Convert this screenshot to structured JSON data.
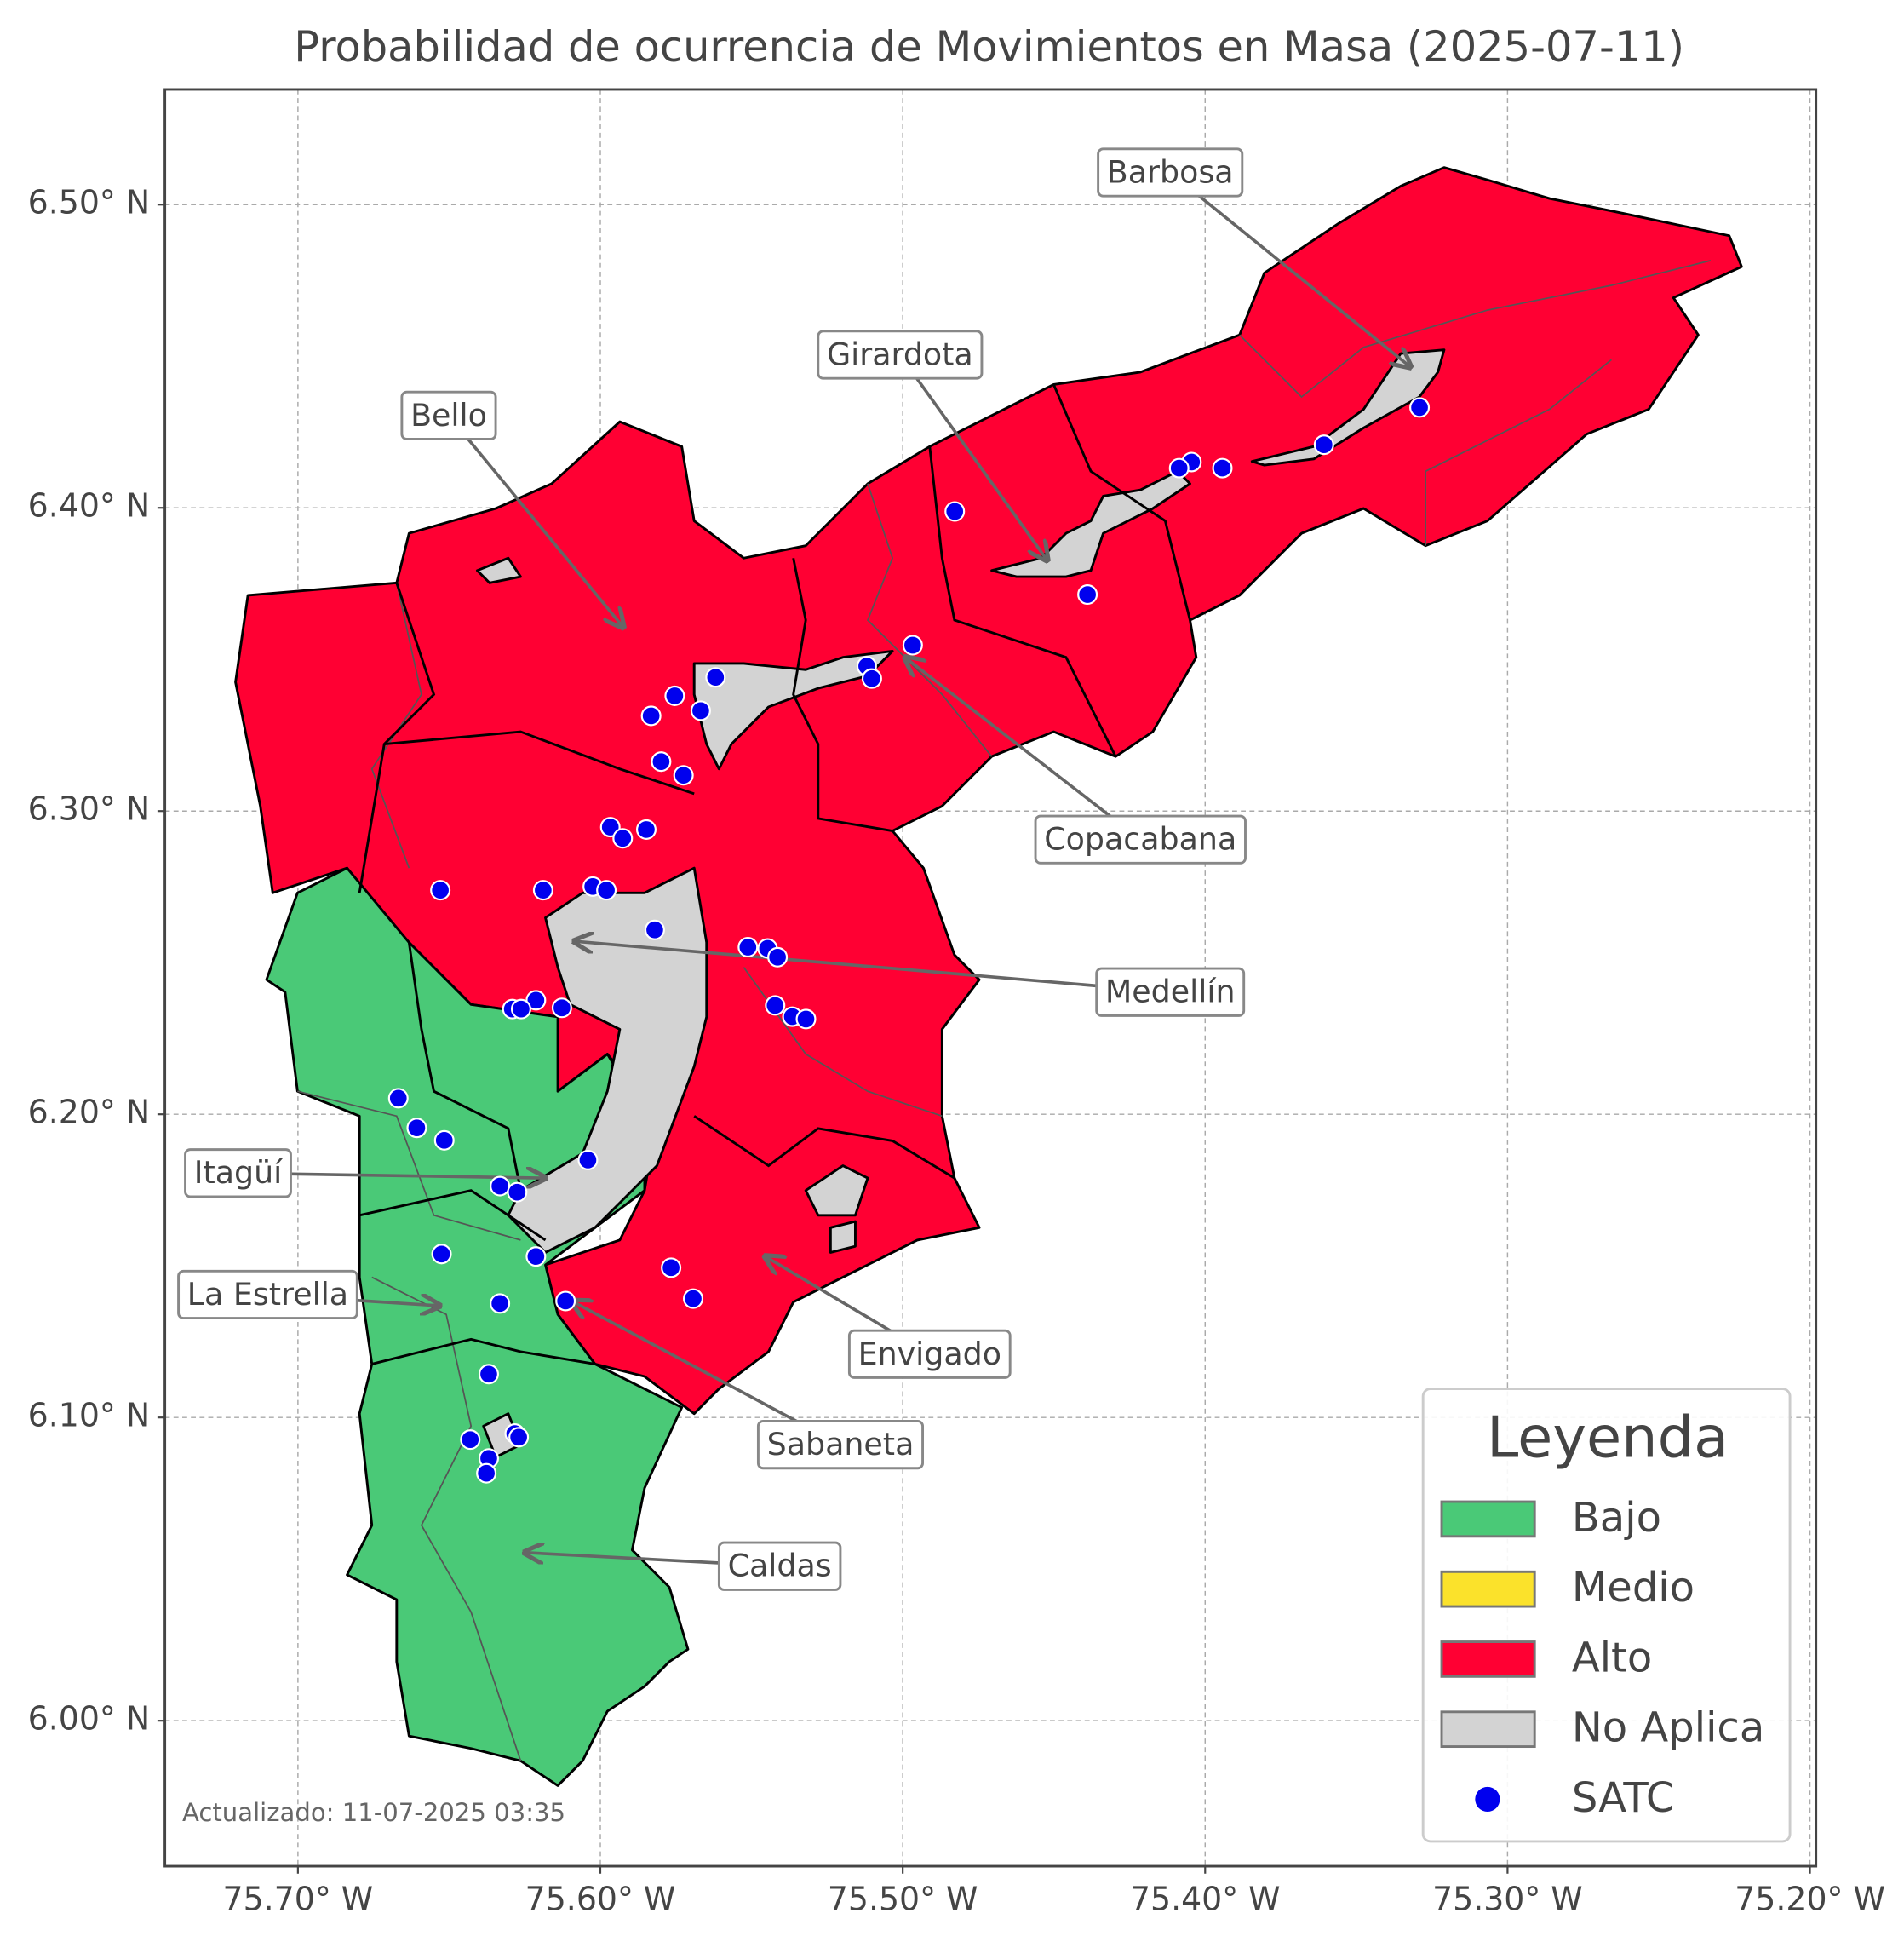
{
  "map": {
    "title": "Probabilidad de ocurrencia de Movimientos en Masa (2025-07-11)",
    "xlim": [
      -75.744,
      -75.198
    ],
    "ylim": [
      5.952,
      6.538
    ],
    "xticks": [
      {
        "value": -75.7,
        "label": "75.70° W"
      },
      {
        "value": -75.6,
        "label": "75.60° W"
      },
      {
        "value": -75.5,
        "label": "75.50° W"
      },
      {
        "value": -75.4,
        "label": "75.40° W"
      },
      {
        "value": -75.3,
        "label": "75.30° W"
      },
      {
        "value": -75.2,
        "label": "75.20° W"
      }
    ],
    "yticks": [
      {
        "value": 6.0,
        "label": "6.00° N"
      },
      {
        "value": 6.1,
        "label": "6.10° N"
      },
      {
        "value": 6.2,
        "label": "6.20° N"
      },
      {
        "value": 6.3,
        "label": "6.30° N"
      },
      {
        "value": 6.4,
        "label": "6.40° N"
      },
      {
        "value": 6.5,
        "label": "6.50° N"
      }
    ],
    "grid": true,
    "annotations": [
      "Barbosa",
      "Girardota",
      "Bello",
      "Copacabana",
      "Medellín",
      "Itagüí",
      "La Estrella",
      "Envigado",
      "Sabaneta",
      "Caldas"
    ],
    "legend": {
      "title": "Leyenda",
      "items": [
        {
          "label": "Bajo",
          "color": "#4ac977"
        },
        {
          "label": "Medio",
          "color": "#fbe22b"
        },
        {
          "label": "Alto",
          "color": "#ff0033"
        },
        {
          "label": "No Aplica",
          "color": "#d3d3d3"
        },
        {
          "label": "SATC",
          "color": "#0000ee",
          "marker": "circle"
        }
      ]
    },
    "satc": {
      "lon": [
        -75.3291,
        -75.3607,
        -75.3943,
        -75.4045,
        -75.4086,
        -75.4828,
        -75.4389,
        -75.4967,
        -75.5119,
        -75.5102,
        -75.5619,
        -75.5754,
        -75.5832,
        -75.5668,
        -75.5799,
        -75.5725,
        -75.5967,
        -75.5926,
        -75.5848,
        -75.6189,
        -75.6529,
        -75.6025,
        -75.598,
        -75.582,
        -75.5512,
        -75.5447,
        -75.5414,
        -75.5422,
        -75.5365,
        -75.532,
        -75.6213,
        -75.6127,
        -75.6291,
        -75.6262,
        -75.6668,
        -75.6607,
        -75.6516,
        -75.6041,
        -75.6332,
        -75.6275,
        -75.6525,
        -75.6213,
        -75.5766,
        -75.5693,
        -75.6332,
        -75.6115,
        -75.6369,
        -75.643,
        -75.6283,
        -75.627,
        -75.6369,
        -75.6377
      ],
      "lat": [
        6.4331,
        6.4208,
        6.4131,
        6.4151,
        6.4131,
        6.3988,
        6.3714,
        6.3547,
        6.3478,
        6.3437,
        6.3441,
        6.338,
        6.3314,
        6.3331,
        6.3163,
        6.3118,
        6.2947,
        6.291,
        6.2939,
        6.2739,
        6.2739,
        6.2751,
        6.2739,
        6.2608,
        6.2551,
        6.2547,
        6.2518,
        6.2359,
        6.2322,
        6.2314,
        6.2376,
        6.2351,
        6.2347,
        6.2347,
        6.2053,
        6.1955,
        6.1914,
        6.1849,
        6.1763,
        6.1743,
        6.1539,
        6.1531,
        6.1494,
        6.1392,
        6.1376,
        6.1384,
        6.1143,
        6.0927,
        6.0947,
        6.0935,
        6.0865,
        6.0816
      ]
    },
    "footer": "Actualizado: 11-07-2025 03:35"
  }
}
